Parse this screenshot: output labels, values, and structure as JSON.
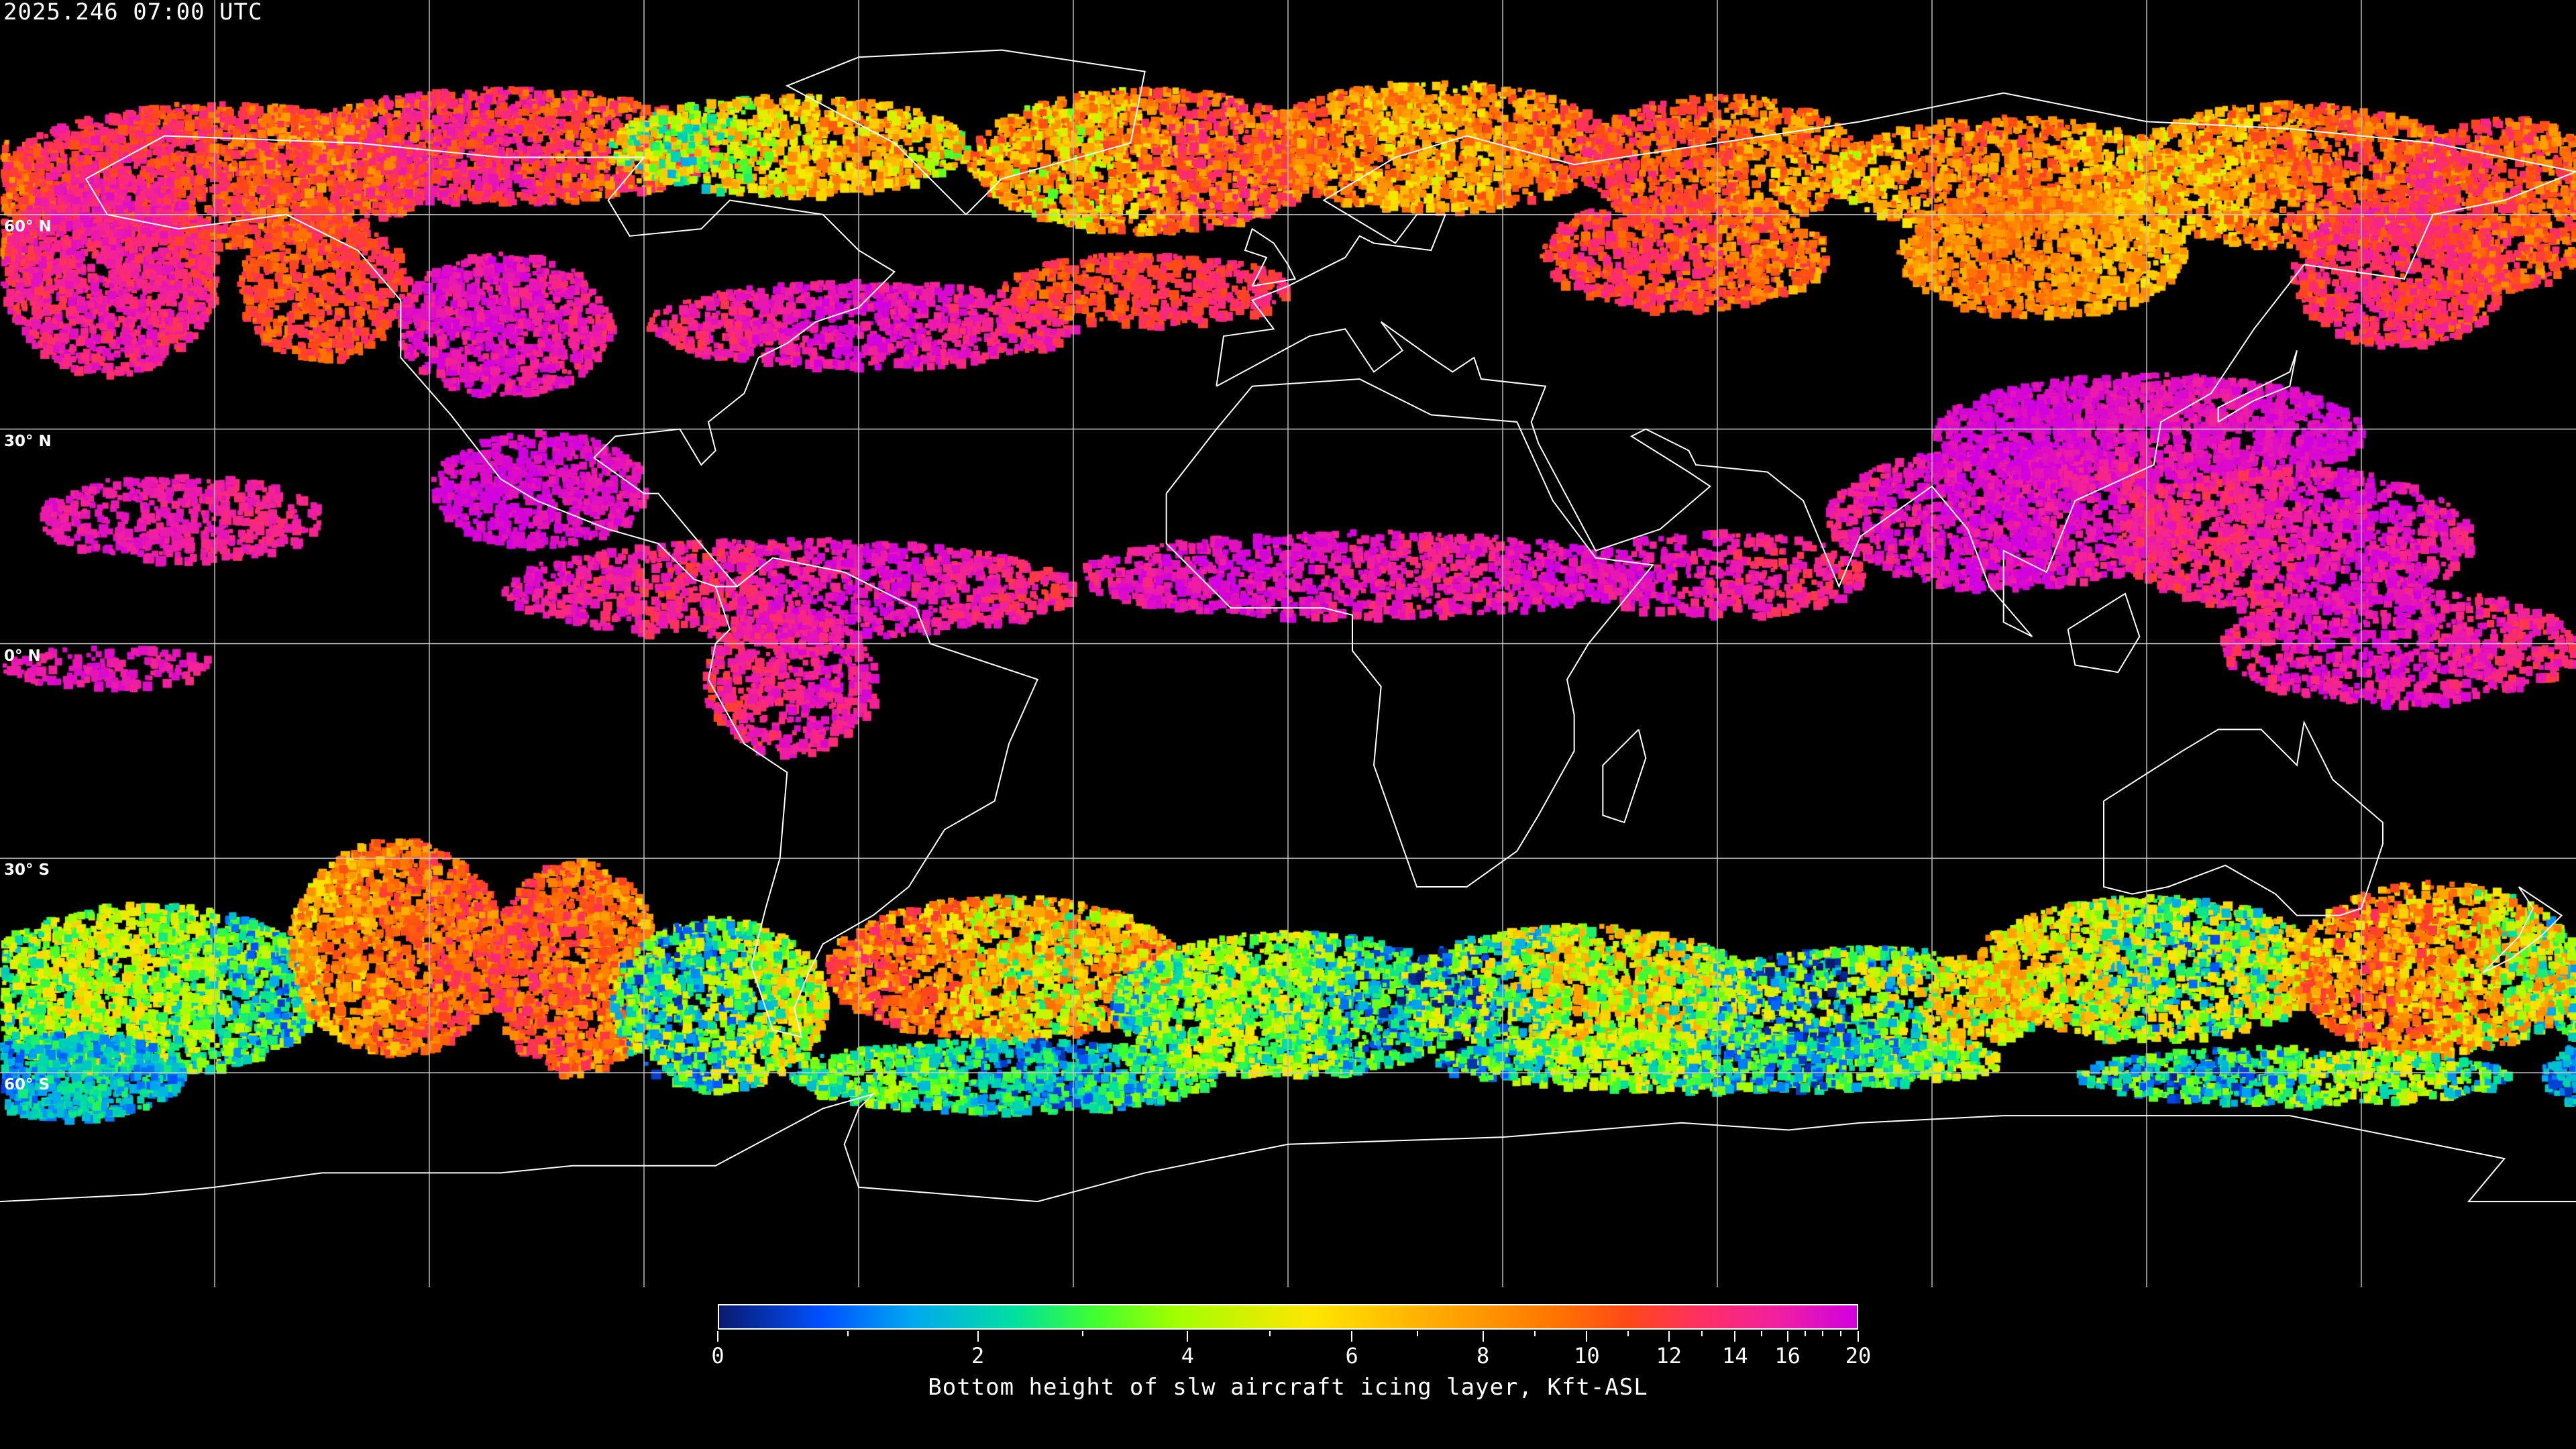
{
  "header": {
    "timestamp": "2025.246 07:00 UTC"
  },
  "map": {
    "projection": "equirectangular",
    "grid_spacing_deg": 30,
    "lat_labels": [
      "60° N",
      "30° N",
      "0° N",
      "30° S",
      "60° S"
    ],
    "coastline_color": "#ffffff",
    "grid_color": "#ffffff",
    "background_color": "#000000"
  },
  "colorbar": {
    "min": 0,
    "max": 20,
    "tick_labels": [
      "0",
      "2",
      "4",
      "6",
      "8",
      "10",
      "12",
      "14",
      "16",
      "20"
    ],
    "minor_ticks": [
      1,
      3,
      5,
      7,
      9,
      11,
      13,
      15,
      17,
      18,
      19
    ],
    "colors": [
      "#0a1a6e",
      "#0050ff",
      "#00a8f0",
      "#00e0a0",
      "#40ff30",
      "#a0ff00",
      "#ffe600",
      "#ffb000",
      "#ff7800",
      "#ff4818",
      "#ff3060",
      "#f020a0",
      "#d000e0"
    ],
    "caption": "Bottom height of slw aircraft icing layer, Kft-ASL"
  }
}
